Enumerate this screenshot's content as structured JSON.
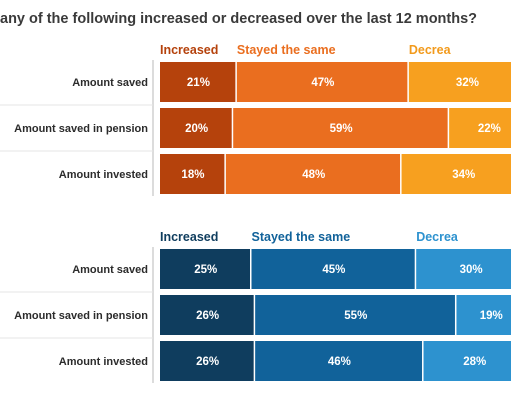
{
  "title": "any of the following increased or decreased over the last 12 months?",
  "chart_data": [
    {
      "type": "bar",
      "stacked": true,
      "orientation": "horizontal",
      "categories": [
        "Amount saved",
        "Amount saved in pension",
        "Amount invested"
      ],
      "series": [
        {
          "name": "Increased",
          "values": [
            21,
            20,
            18
          ],
          "color": "#b5420c",
          "header_color": "#b5420c"
        },
        {
          "name": "Stayed the same",
          "values": [
            47,
            59,
            48
          ],
          "color": "#ea6e1f",
          "header_color": "#ea6e1f"
        },
        {
          "name": "Decrea",
          "values": [
            32,
            22,
            34
          ],
          "color": "#f7a01f",
          "header_color": "#f29a1c"
        }
      ],
      "value_suffix": "%"
    },
    {
      "type": "bar",
      "stacked": true,
      "orientation": "horizontal",
      "categories": [
        "Amount saved",
        "Amount saved in pension",
        "Amount invested"
      ],
      "series": [
        {
          "name": "Increased",
          "values": [
            25,
            26,
            26
          ],
          "color": "#0f3d5e",
          "header_color": "#0f3d5e"
        },
        {
          "name": "Stayed the same",
          "values": [
            45,
            55,
            46
          ],
          "color": "#11629a",
          "header_color": "#11629a"
        },
        {
          "name": "Decrea",
          "values": [
            30,
            19,
            28
          ],
          "color": "#2d92cf",
          "header_color": "#2d92cf"
        }
      ],
      "value_suffix": "%"
    }
  ]
}
